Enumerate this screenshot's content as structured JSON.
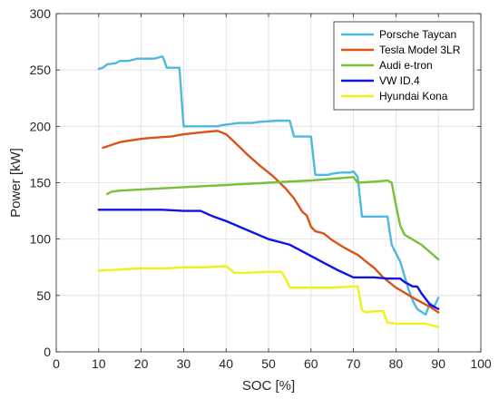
{
  "chart_data": {
    "type": "line",
    "title": "",
    "xlabel": "SOC [%]",
    "ylabel": "Power [kW]",
    "xlim": [
      0,
      100
    ],
    "ylim": [
      0,
      300
    ],
    "xticks": [
      0,
      10,
      20,
      30,
      40,
      50,
      60,
      70,
      80,
      90,
      100
    ],
    "yticks": [
      0,
      50,
      100,
      150,
      200,
      250,
      300
    ],
    "grid": true,
    "legend_position": "top-right",
    "series": [
      {
        "name": "Porsche Taycan",
        "color": "#4db8e0",
        "points": [
          [
            10,
            251
          ],
          [
            11,
            252
          ],
          [
            12,
            255
          ],
          [
            14,
            256
          ],
          [
            15,
            258
          ],
          [
            17,
            258
          ],
          [
            18,
            259
          ],
          [
            19,
            260
          ],
          [
            23,
            260
          ],
          [
            24,
            261
          ],
          [
            25,
            262
          ],
          [
            25.5,
            258
          ],
          [
            26,
            252
          ],
          [
            29,
            252
          ],
          [
            30,
            200
          ],
          [
            38,
            200
          ],
          [
            39,
            201
          ],
          [
            41,
            202
          ],
          [
            43,
            203
          ],
          [
            46,
            203
          ],
          [
            48,
            204
          ],
          [
            52,
            205
          ],
          [
            55,
            205
          ],
          [
            56,
            191
          ],
          [
            60,
            191
          ],
          [
            61,
            157
          ],
          [
            64,
            157
          ],
          [
            65,
            158
          ],
          [
            67,
            159
          ],
          [
            69,
            159
          ],
          [
            70,
            160
          ],
          [
            71,
            155
          ],
          [
            72,
            120
          ],
          [
            78,
            120
          ],
          [
            79,
            95
          ],
          [
            81,
            80
          ],
          [
            83,
            55
          ],
          [
            84,
            45
          ],
          [
            85,
            38
          ],
          [
            87,
            33
          ],
          [
            88,
            43
          ],
          [
            89,
            40
          ],
          [
            90,
            48
          ]
        ]
      },
      {
        "name": "Tesla Model 3LR",
        "color": "#d95319",
        "points": [
          [
            11,
            181
          ],
          [
            15,
            186
          ],
          [
            20,
            189
          ],
          [
            23,
            190
          ],
          [
            27,
            191
          ],
          [
            30,
            193
          ],
          [
            35,
            195
          ],
          [
            38,
            196
          ],
          [
            40,
            193
          ],
          [
            42,
            186
          ],
          [
            45,
            175
          ],
          [
            48,
            165
          ],
          [
            51,
            156
          ],
          [
            54,
            145
          ],
          [
            56,
            136
          ],
          [
            58,
            124
          ],
          [
            59,
            121
          ],
          [
            60,
            111
          ],
          [
            61,
            107
          ],
          [
            63,
            105
          ],
          [
            65,
            99
          ],
          [
            68,
            92
          ],
          [
            70,
            88
          ],
          [
            71,
            86
          ],
          [
            73,
            80
          ],
          [
            75,
            74
          ],
          [
            77,
            66
          ],
          [
            80,
            57
          ],
          [
            84,
            48
          ],
          [
            88,
            40
          ],
          [
            90,
            35
          ]
        ]
      },
      {
        "name": "Audi e-tron",
        "color": "#77c038",
        "points": [
          [
            12,
            140
          ],
          [
            13,
            142
          ],
          [
            15,
            143
          ],
          [
            20,
            144
          ],
          [
            30,
            146
          ],
          [
            40,
            148
          ],
          [
            50,
            150
          ],
          [
            60,
            152
          ],
          [
            70,
            155
          ],
          [
            71,
            150
          ],
          [
            75,
            151
          ],
          [
            78,
            152
          ],
          [
            79,
            150
          ],
          [
            80,
            130
          ],
          [
            81,
            112
          ],
          [
            82,
            104
          ],
          [
            86,
            95
          ],
          [
            90,
            82
          ]
        ]
      },
      {
        "name": "VW ID.4",
        "color": "#0c14e8",
        "points": [
          [
            10,
            126
          ],
          [
            15,
            126
          ],
          [
            20,
            126
          ],
          [
            25,
            126
          ],
          [
            30,
            125
          ],
          [
            34,
            125
          ],
          [
            37,
            120
          ],
          [
            40,
            116
          ],
          [
            45,
            108
          ],
          [
            50,
            100
          ],
          [
            53,
            97
          ],
          [
            55,
            95
          ],
          [
            57,
            91
          ],
          [
            60,
            85
          ],
          [
            63,
            79
          ],
          [
            66,
            73
          ],
          [
            70,
            66
          ],
          [
            75,
            66
          ],
          [
            78,
            65
          ],
          [
            80,
            65
          ],
          [
            81,
            65
          ],
          [
            82,
            62
          ],
          [
            83,
            60
          ],
          [
            84,
            58
          ],
          [
            85,
            58
          ],
          [
            86,
            52
          ],
          [
            88,
            42
          ],
          [
            89,
            40
          ],
          [
            90,
            38
          ]
        ]
      },
      {
        "name": "Hyundai Kona",
        "color": "#f0f01a",
        "points": [
          [
            10,
            72
          ],
          [
            15,
            73
          ],
          [
            20,
            74
          ],
          [
            25,
            74
          ],
          [
            30,
            75
          ],
          [
            35,
            75
          ],
          [
            40,
            76
          ],
          [
            42,
            70
          ],
          [
            44,
            70
          ],
          [
            50,
            71
          ],
          [
            53,
            71
          ],
          [
            54,
            65
          ],
          [
            55,
            57
          ],
          [
            60,
            57
          ],
          [
            65,
            57
          ],
          [
            70,
            58
          ],
          [
            71,
            58
          ],
          [
            72,
            37
          ],
          [
            73,
            35
          ],
          [
            75,
            36
          ],
          [
            77,
            36
          ],
          [
            78,
            26
          ],
          [
            80,
            25
          ],
          [
            85,
            25
          ],
          [
            87,
            25
          ],
          [
            88,
            24
          ],
          [
            90,
            22
          ]
        ]
      }
    ]
  }
}
